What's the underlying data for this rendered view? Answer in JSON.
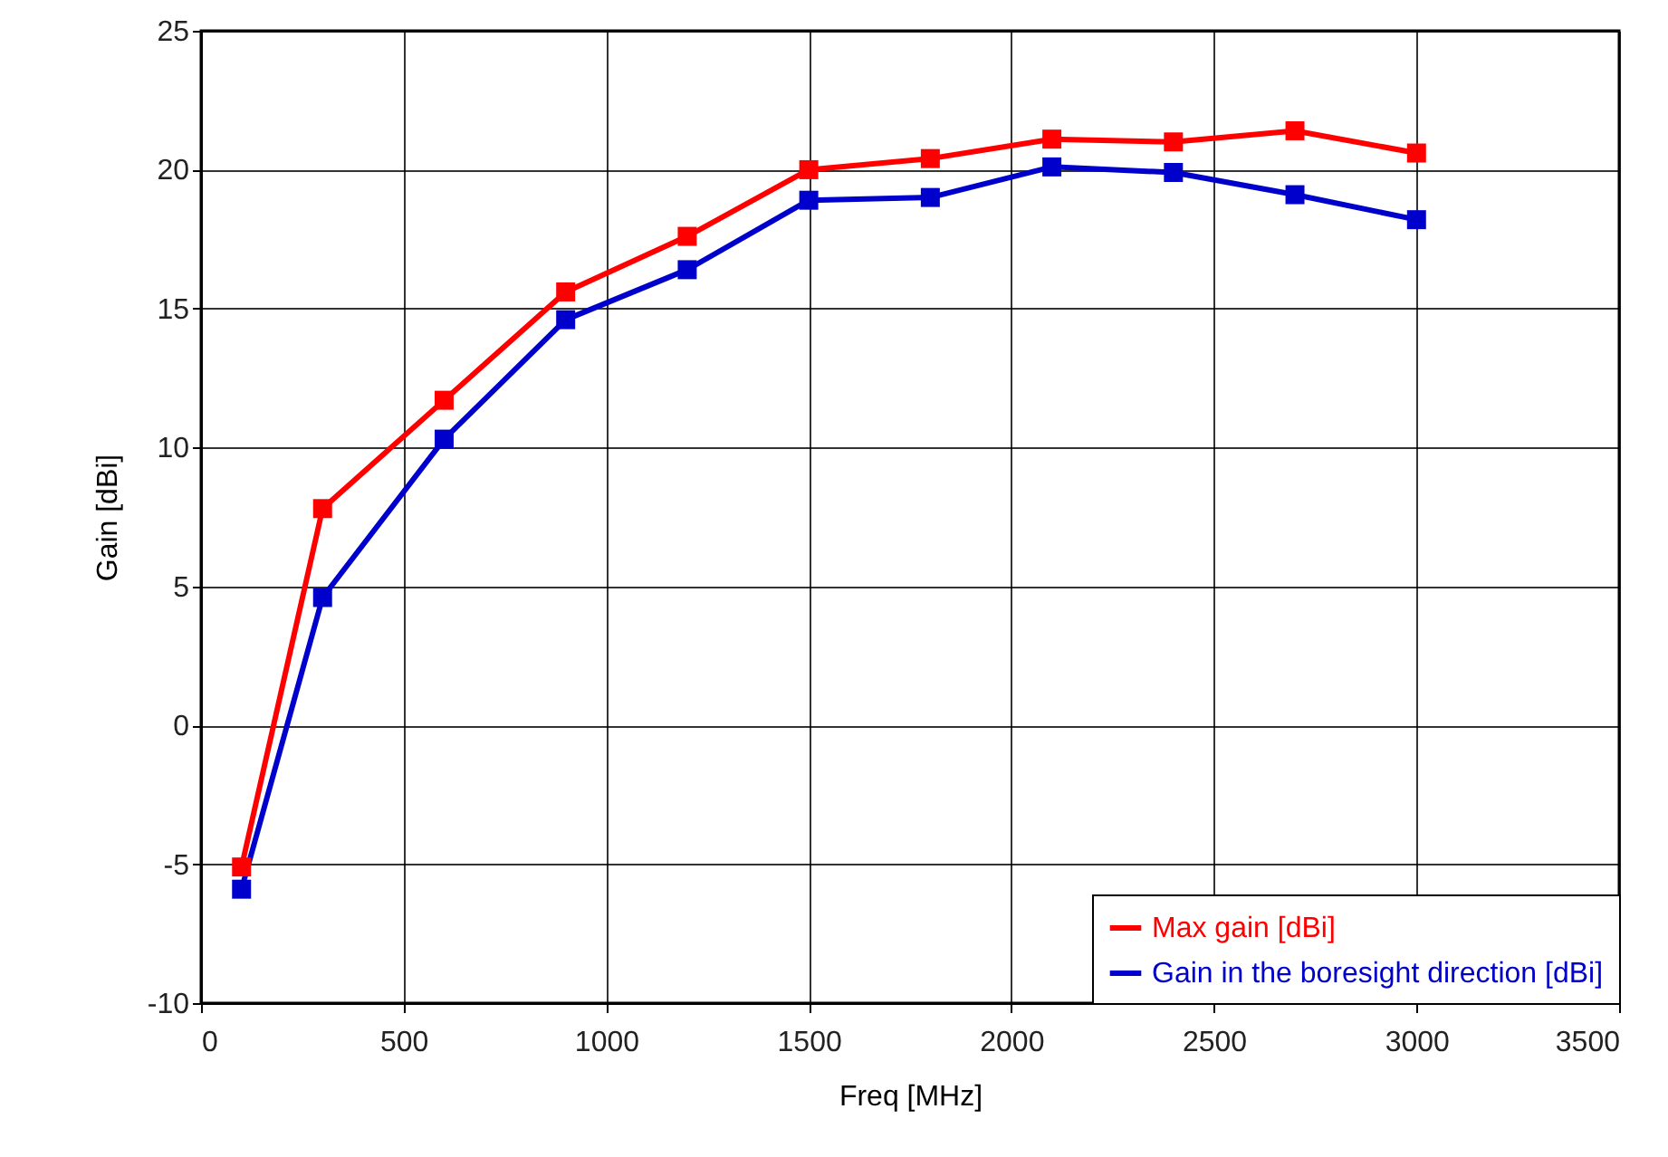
{
  "chart_data": {
    "type": "line",
    "xlabel": "Freq [MHz]",
    "ylabel": "Gain [dBi]",
    "x": [
      100,
      300,
      600,
      900,
      1200,
      1500,
      1800,
      2100,
      2400,
      2700,
      3000
    ],
    "series": [
      {
        "name": "Max gain [dBi]",
        "color": "#ff0000",
        "values": [
          -5.1,
          7.8,
          11.7,
          15.6,
          17.6,
          20.0,
          20.4,
          21.1,
          21.0,
          21.4,
          20.6
        ]
      },
      {
        "name": "Gain in the boresight direction [dBi]",
        "color": "#0000cc",
        "values": [
          -5.9,
          4.6,
          10.3,
          14.6,
          16.4,
          18.9,
          19.0,
          20.1,
          19.9,
          19.1,
          18.2
        ]
      }
    ],
    "xlim": [
      0,
      3500
    ],
    "xticks": [
      0,
      500,
      1000,
      1500,
      2000,
      2500,
      3000,
      3500
    ],
    "ylim": [
      -10,
      25
    ],
    "yticks": [
      -10,
      -5,
      0,
      5,
      10,
      15,
      20,
      25
    ],
    "grid": true,
    "legend": "bottom right",
    "marker": "square",
    "line_style": "solid"
  }
}
